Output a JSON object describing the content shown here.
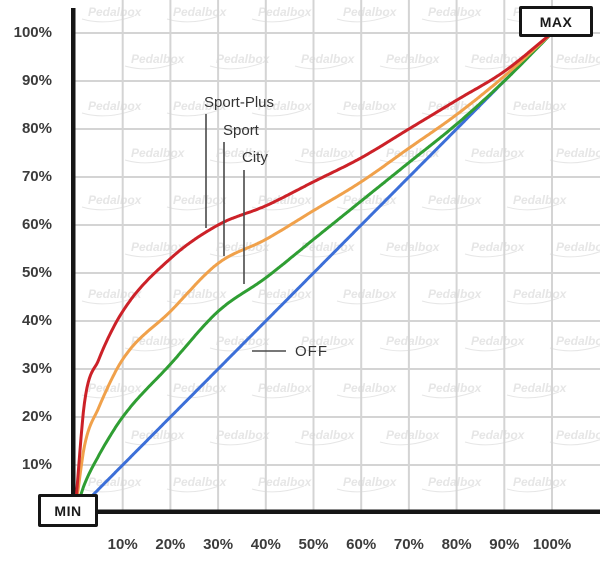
{
  "chart_data": {
    "type": "line",
    "title": "",
    "xlabel": "",
    "ylabel": "",
    "xlim": [
      0,
      100
    ],
    "ylim": [
      0,
      100
    ],
    "grid": true,
    "legend_position": "inline-annotations",
    "x_ticks": [
      "10%",
      "20%",
      "30%",
      "40%",
      "50%",
      "60%",
      "70%",
      "80%",
      "90%",
      "100%"
    ],
    "y_ticks": [
      "10%",
      "20%",
      "30%",
      "40%",
      "50%",
      "60%",
      "70%",
      "80%",
      "90%",
      "100%"
    ],
    "x": [
      0,
      2,
      5,
      10,
      20,
      30,
      40,
      50,
      60,
      70,
      80,
      90,
      100
    ],
    "series": [
      {
        "name": "Sport-Plus",
        "color": "#cc2128",
        "values": [
          0,
          23,
          32,
          42,
          53,
          60,
          64,
          69,
          74,
          80,
          86,
          92,
          100
        ]
      },
      {
        "name": "Sport",
        "color": "#f0a14b",
        "values": [
          0,
          14,
          22,
          32,
          42,
          52,
          57,
          63,
          69,
          76,
          83,
          91,
          100
        ]
      },
      {
        "name": "City",
        "color": "#2f9e33",
        "values": [
          0,
          6,
          12,
          20,
          31,
          42,
          49,
          57,
          65,
          73,
          81,
          90,
          100
        ]
      },
      {
        "name": "OFF",
        "color": "#3c6fd8",
        "values": [
          0,
          2,
          5,
          10,
          20,
          30,
          40,
          50,
          60,
          70,
          80,
          90,
          100
        ]
      }
    ]
  },
  "endpoints": {
    "min": "MIN",
    "max": "MAX"
  },
  "watermark": {
    "text": "Pedalbox"
  },
  "colors": {
    "grid": "#d4d4d4",
    "axis": "#161616",
    "tick_text": "#3b3b3b",
    "leader_line": "#4a4a4a",
    "watermark": "#e6e6e6"
  }
}
